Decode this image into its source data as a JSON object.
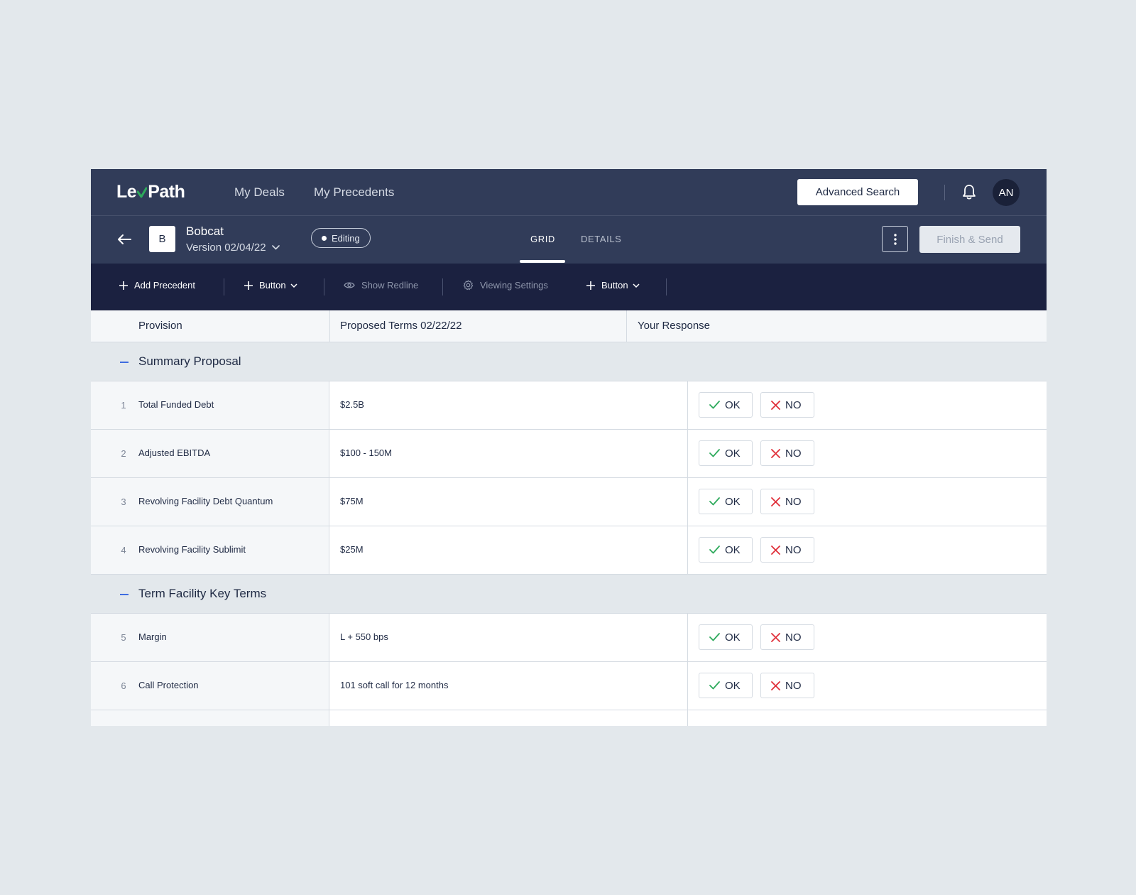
{
  "brand": {
    "name_left": "Le",
    "name_right": "Path"
  },
  "nav": {
    "deals": "My Deals",
    "precedents": "My Precedents",
    "advanced_search": "Advanced Search",
    "avatar": "AN"
  },
  "deal": {
    "initial": "B",
    "name": "Bobcat",
    "version": "Version 02/04/22",
    "status": "Editing"
  },
  "tabs": {
    "grid": "GRID",
    "details": "DETAILS"
  },
  "actions": {
    "finish": "Finish & Send"
  },
  "toolbar": {
    "add_precedent": "Add Precedent",
    "button1": "Button",
    "show_redline": "Show Redline",
    "viewing_settings": "Viewing Settings",
    "button2": "Button"
  },
  "table": {
    "headers": {
      "provision": "Provision",
      "proposed": "Proposed Terms 02/22/22",
      "response": "Your Response"
    },
    "ok_label": "OK",
    "no_label": "NO",
    "groups": [
      {
        "title": "Summary Proposal",
        "rows": [
          {
            "num": "1",
            "provision": "Total Funded Debt",
            "term": "$2.5B"
          },
          {
            "num": "2",
            "provision": "Adjusted EBITDA",
            "term": "$100 - 150M"
          },
          {
            "num": "3",
            "provision": "Revolving Facility Debt Quantum",
            "term": "$75M"
          },
          {
            "num": "4",
            "provision": "Revolving Facility Sublimit",
            "term": "$25M"
          }
        ]
      },
      {
        "title": "Term Facility Key Terms",
        "rows": [
          {
            "num": "5",
            "provision": "Margin",
            "term": "L + 550 bps"
          },
          {
            "num": "6",
            "provision": "Call Protection",
            "term": "101 soft call for 12 months"
          }
        ]
      }
    ]
  },
  "colors": {
    "nav_bg": "#313c59",
    "toolbar_bg": "#1b2140",
    "ok_green": "#2eaa5c",
    "no_red": "#e0303a",
    "accent_blue": "#3e6ce0"
  }
}
